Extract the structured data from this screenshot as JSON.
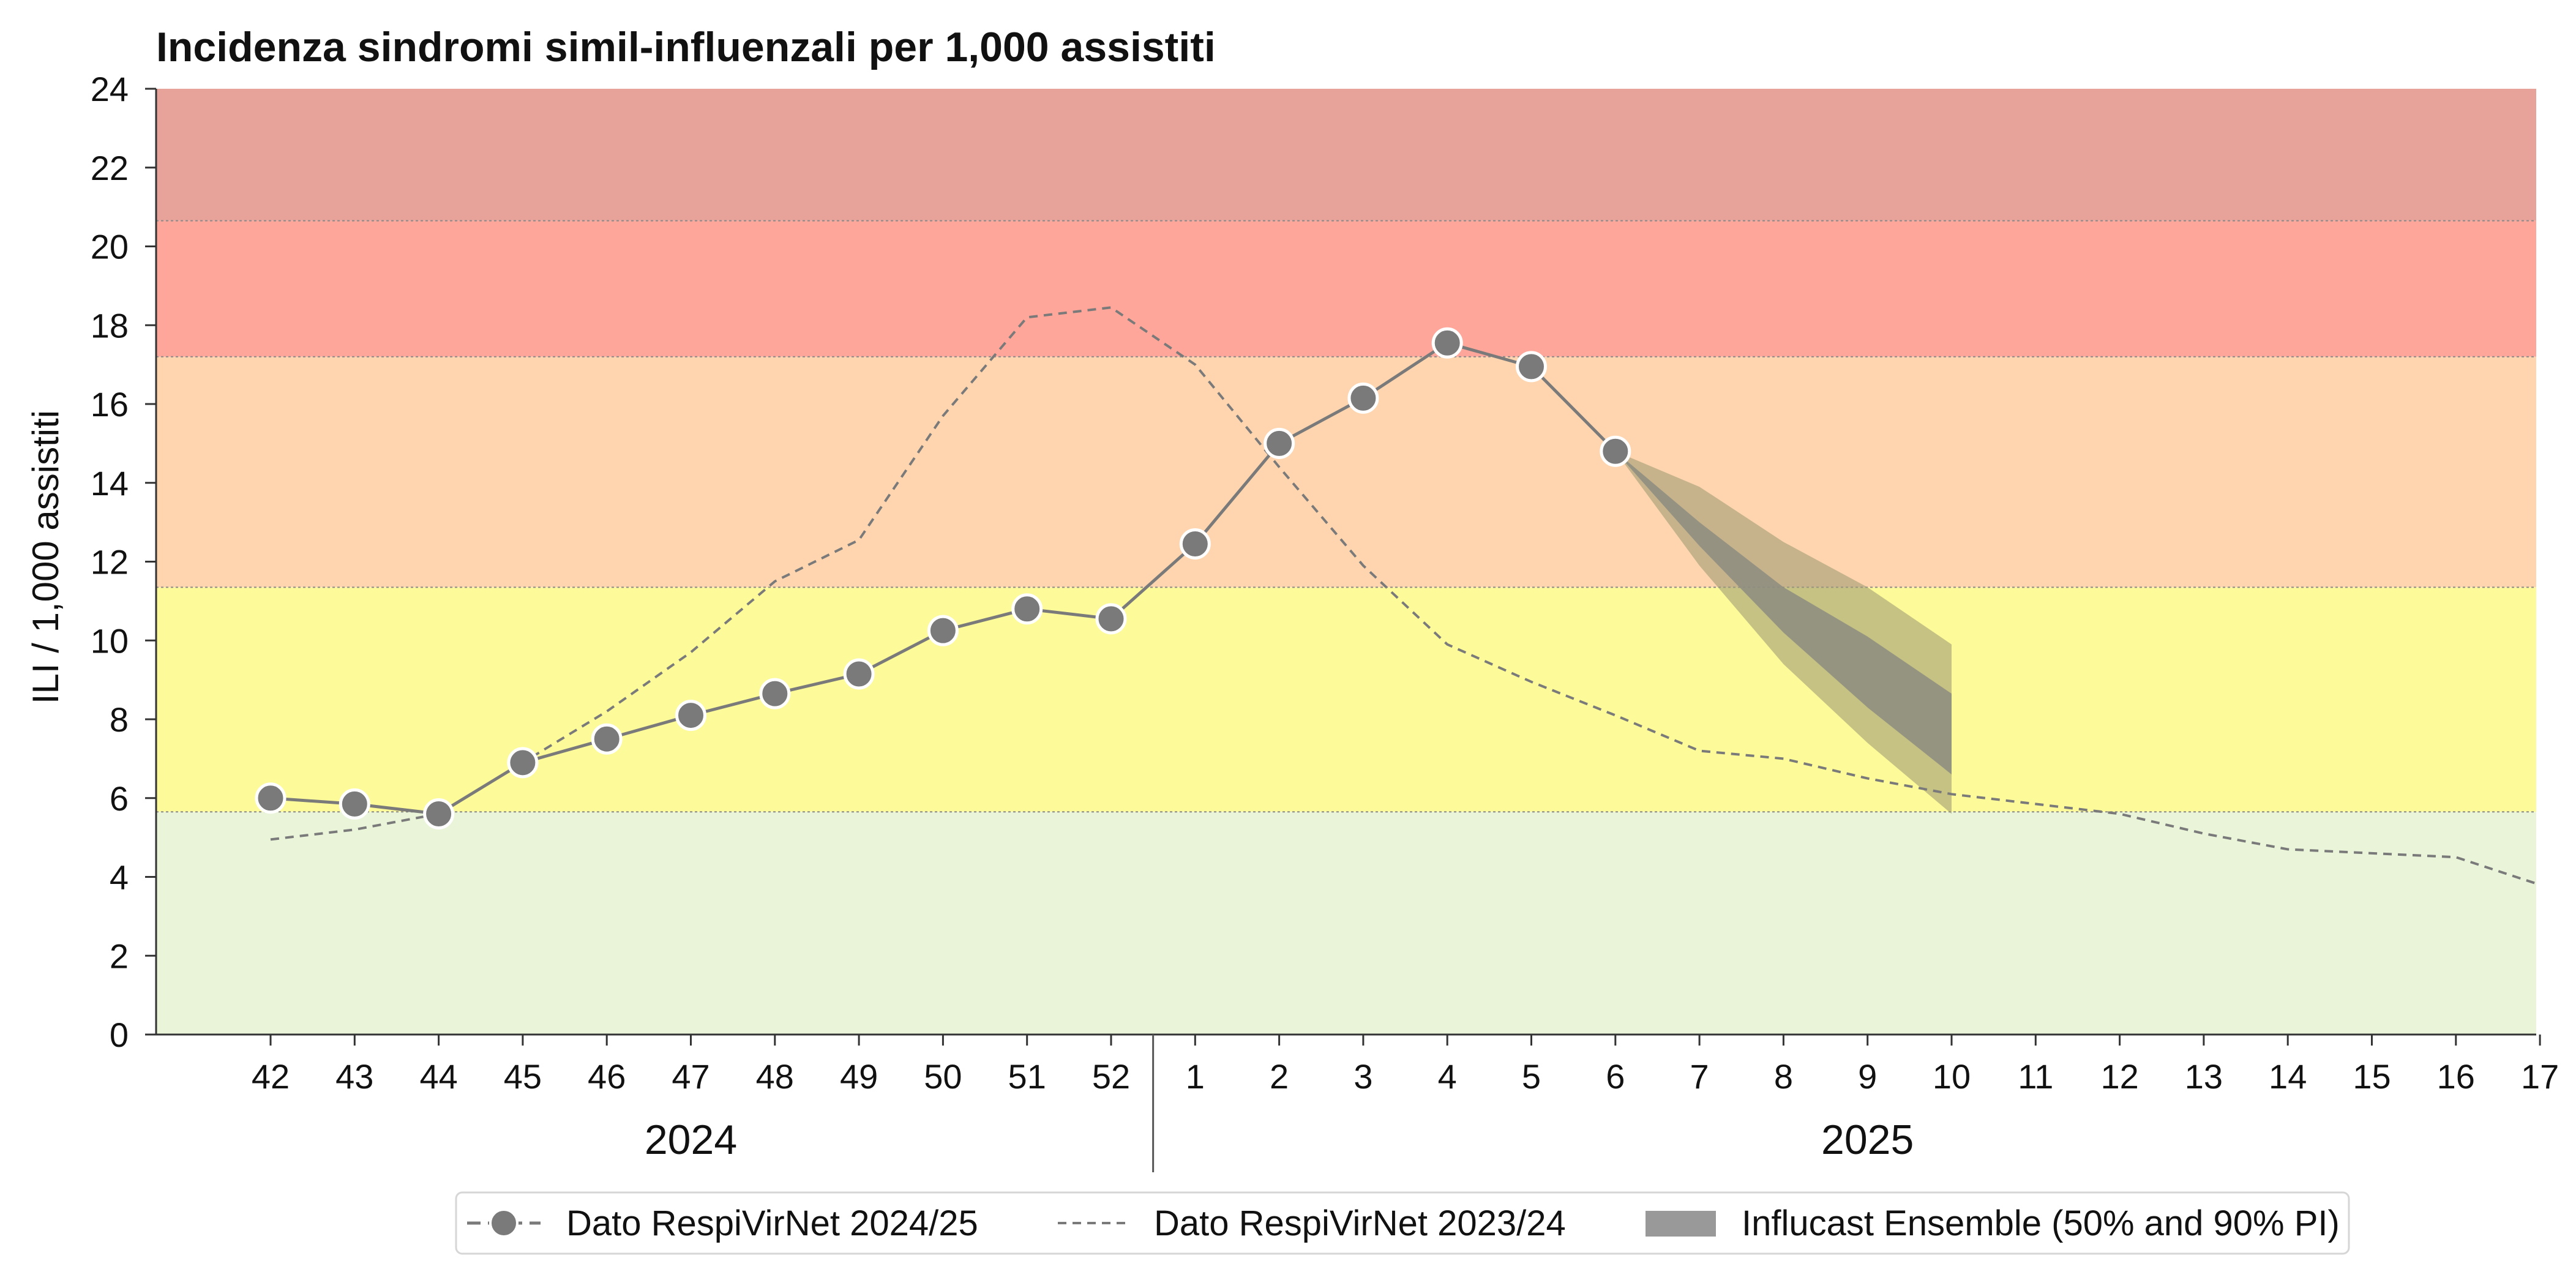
{
  "chart_data": {
    "type": "line",
    "title": "Incidenza sindromi simil-influenzali per 1,000 assistiti",
    "ylabel": "ILI / 1,000 assistiti",
    "xlabel": "",
    "ylim": [
      0,
      24
    ],
    "yticks": [
      0,
      2,
      4,
      6,
      8,
      10,
      12,
      14,
      16,
      18,
      20,
      22,
      24
    ],
    "weeks": [
      "42",
      "43",
      "44",
      "45",
      "46",
      "47",
      "48",
      "49",
      "50",
      "51",
      "52",
      "1",
      "2",
      "3",
      "4",
      "5",
      "6",
      "7",
      "8",
      "9",
      "10",
      "11",
      "12",
      "13",
      "14",
      "15",
      "16",
      "17"
    ],
    "years": [
      {
        "label": "2024",
        "from_week": "42",
        "to_week": "52"
      },
      {
        "label": "2025",
        "from_week": "1",
        "to_week": "17"
      }
    ],
    "threshold_bands": [
      {
        "from": 0,
        "to": 5.65,
        "color": "#e9f4d9"
      },
      {
        "from": 5.65,
        "to": 11.35,
        "color": "#fdfa99"
      },
      {
        "from": 11.35,
        "to": 17.2,
        "color": "#fed5ae"
      },
      {
        "from": 17.2,
        "to": 20.65,
        "color": "#fea699"
      },
      {
        "from": 20.65,
        "to": 24,
        "color": "#e7a299"
      }
    ],
    "series": [
      {
        "name": "Dato RespiVirNet 2024/25",
        "style": "solid-markers",
        "color": "#7a7a7a",
        "weeks": [
          "42",
          "43",
          "44",
          "45",
          "46",
          "47",
          "48",
          "49",
          "50",
          "51",
          "52",
          "1",
          "2",
          "3",
          "4",
          "5",
          "6"
        ],
        "values": [
          6.0,
          5.85,
          5.6,
          6.9,
          7.5,
          8.1,
          8.65,
          9.15,
          10.25,
          10.8,
          10.55,
          12.45,
          15.0,
          16.15,
          17.55,
          16.95,
          14.8
        ]
      },
      {
        "name": "Dato RespiVirNet 2023/24",
        "style": "dashed",
        "color": "#7a7a7a",
        "weeks": [
          "42",
          "43",
          "44",
          "45",
          "46",
          "47",
          "48",
          "49",
          "50",
          "51",
          "52",
          "1",
          "2",
          "3",
          "4",
          "5",
          "6",
          "7",
          "8",
          "9",
          "10",
          "11",
          "12",
          "13",
          "14",
          "15",
          "16",
          "17"
        ],
        "values": [
          4.95,
          5.2,
          5.6,
          6.9,
          8.2,
          9.7,
          11.5,
          12.55,
          15.7,
          18.2,
          18.45,
          17.0,
          14.4,
          11.9,
          9.9,
          8.95,
          8.1,
          7.2,
          7.0,
          6.5,
          6.1,
          5.85,
          5.6,
          5.1,
          4.7,
          4.6,
          4.5,
          3.8
        ]
      }
    ],
    "forecast": {
      "name": "Influcast Ensemble (50% and 90% PI)",
      "color_90": "#a09c74",
      "color_50": "#8c8c80",
      "weeks": [
        "6",
        "7",
        "8",
        "9",
        "10"
      ],
      "lower90": [
        14.8,
        11.9,
        9.4,
        7.4,
        5.6
      ],
      "upper90": [
        14.8,
        13.9,
        12.5,
        11.35,
        9.9
      ],
      "lower50": [
        14.8,
        12.4,
        10.2,
        8.3,
        6.6
      ],
      "upper50": [
        14.8,
        13.0,
        11.35,
        10.1,
        8.65
      ]
    },
    "legend": {
      "position": "bottom-center",
      "entries": [
        "Dato RespiVirNet 2024/25",
        "Dato RespiVirNet 2023/24",
        "Influcast Ensemble (50% and 90% PI)"
      ]
    },
    "grid": false
  }
}
